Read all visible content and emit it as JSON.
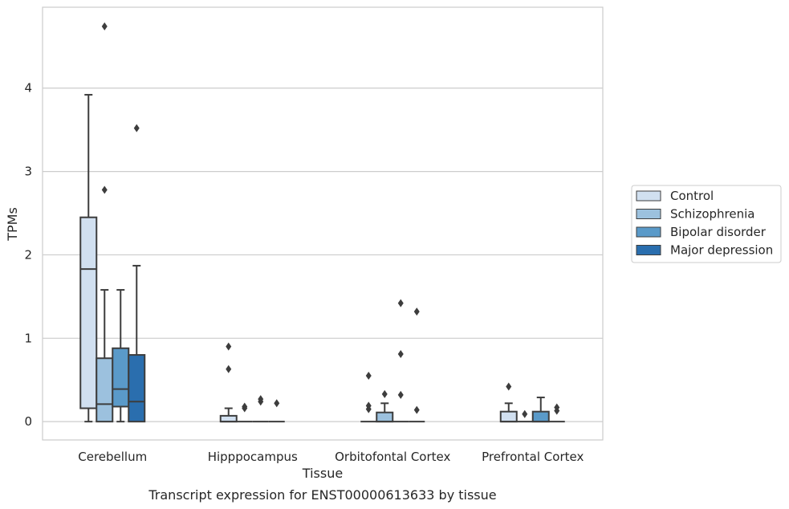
{
  "chart_data": {
    "type": "box",
    "title": "Transcript expression for ENST00000613633 by tissue",
    "xlabel": "Tissue",
    "ylabel": "TPMs",
    "ylim": [
      -0.22,
      4.97
    ],
    "yticks": [
      0,
      1,
      2,
      3,
      4
    ],
    "grid": "horizontal",
    "legend_position": "right",
    "categories": [
      "Cerebellum",
      "Hipppocampus",
      "Orbitofontal Cortex",
      "Prefrontal Cortex"
    ],
    "series": [
      {
        "name": "Control",
        "color": "#d1e0f0",
        "boxes": [
          {
            "min": 0,
            "q1": 0.16,
            "median": 1.83,
            "q3": 2.45,
            "max": 3.92,
            "outliers": []
          },
          {
            "min": 0,
            "q1": 0,
            "median": 0,
            "q3": 0.07,
            "max": 0.16,
            "outliers": [
              0.63,
              0.9
            ]
          },
          {
            "min": 0,
            "q1": 0,
            "median": 0,
            "q3": 0,
            "max": 0,
            "outliers": [
              0.15,
              0.19,
              0.55
            ]
          },
          {
            "min": 0,
            "q1": 0,
            "median": 0,
            "q3": 0.12,
            "max": 0.22,
            "outliers": [
              0.42
            ]
          }
        ]
      },
      {
        "name": "Schizophrenia",
        "color": "#9cc1de",
        "boxes": [
          {
            "min": 0,
            "q1": 0,
            "median": 0.21,
            "q3": 0.76,
            "max": 1.58,
            "outliers": [
              2.78,
              4.74
            ]
          },
          {
            "min": 0,
            "q1": 0,
            "median": 0,
            "q3": 0,
            "max": 0,
            "outliers": [
              0.16,
              0.18
            ]
          },
          {
            "min": 0,
            "q1": 0,
            "median": 0,
            "q3": 0.11,
            "max": 0.22,
            "outliers": [
              0.33
            ]
          },
          {
            "min": 0,
            "q1": 0,
            "median": 0,
            "q3": 0,
            "max": 0,
            "outliers": [
              0.09
            ]
          }
        ]
      },
      {
        "name": "Bipolar disorder",
        "color": "#5a9ac9",
        "boxes": [
          {
            "min": 0,
            "q1": 0.18,
            "median": 0.39,
            "q3": 0.88,
            "max": 1.58,
            "outliers": []
          },
          {
            "min": 0,
            "q1": 0,
            "median": 0,
            "q3": 0,
            "max": 0,
            "outliers": [
              0.24,
              0.27
            ]
          },
          {
            "min": 0,
            "q1": 0,
            "median": 0,
            "q3": 0,
            "max": 0,
            "outliers": [
              0.32,
              0.81,
              1.42
            ]
          },
          {
            "min": 0,
            "q1": 0,
            "median": 0,
            "q3": 0.12,
            "max": 0.29,
            "outliers": []
          }
        ]
      },
      {
        "name": "Major depression",
        "color": "#2a6eae",
        "boxes": [
          {
            "min": 0,
            "q1": 0,
            "median": 0.24,
            "q3": 0.8,
            "max": 1.87,
            "outliers": [
              3.52
            ]
          },
          {
            "min": 0,
            "q1": 0,
            "median": 0,
            "q3": 0,
            "max": 0,
            "outliers": [
              0.22
            ]
          },
          {
            "min": 0,
            "q1": 0,
            "median": 0,
            "q3": 0,
            "max": 0,
            "outliers": [
              0.14,
              1.32
            ]
          },
          {
            "min": 0,
            "q1": 0,
            "median": 0,
            "q3": 0,
            "max": 0,
            "outliers": [
              0.13,
              0.17
            ]
          }
        ]
      }
    ]
  }
}
